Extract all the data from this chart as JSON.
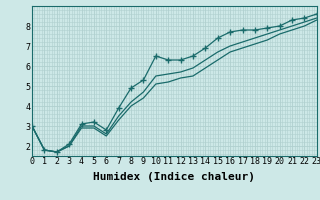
{
  "xlabel": "Humidex (Indice chaleur)",
  "background_color": "#cde8e7",
  "grid_color": "#b0d0cf",
  "line_color": "#1a6b6b",
  "x_values": [
    0,
    1,
    2,
    3,
    4,
    5,
    6,
    7,
    8,
    9,
    10,
    11,
    12,
    13,
    14,
    15,
    16,
    17,
    18,
    19,
    20,
    21,
    22,
    23
  ],
  "line1": [
    3.0,
    1.8,
    1.7,
    2.1,
    3.1,
    3.2,
    2.8,
    3.9,
    4.9,
    5.3,
    6.5,
    6.3,
    6.3,
    6.5,
    6.9,
    7.4,
    7.7,
    7.8,
    7.8,
    7.9,
    8.0,
    8.3,
    8.4,
    8.6
  ],
  "line2": [
    3.0,
    1.8,
    1.7,
    2.0,
    3.0,
    3.0,
    2.6,
    3.5,
    4.2,
    4.7,
    5.5,
    5.6,
    5.7,
    5.9,
    6.3,
    6.7,
    7.0,
    7.2,
    7.4,
    7.6,
    7.8,
    8.0,
    8.2,
    8.4
  ],
  "line3": [
    3.0,
    1.8,
    1.7,
    2.0,
    2.9,
    2.9,
    2.5,
    3.3,
    4.0,
    4.4,
    5.1,
    5.2,
    5.4,
    5.5,
    5.9,
    6.3,
    6.7,
    6.9,
    7.1,
    7.3,
    7.6,
    7.8,
    8.0,
    8.3
  ],
  "ylim": [
    1.5,
    9.0
  ],
  "xlim": [
    0,
    23
  ],
  "yticks": [
    2,
    3,
    4,
    5,
    6,
    7,
    8
  ],
  "xticks": [
    0,
    1,
    2,
    3,
    4,
    5,
    6,
    7,
    8,
    9,
    10,
    11,
    12,
    13,
    14,
    15,
    16,
    17,
    18,
    19,
    20,
    21,
    22,
    23
  ],
  "xtick_labels": [
    "0",
    "1",
    "2",
    "3",
    "4",
    "5",
    "6",
    "7",
    "8",
    "9",
    "10",
    "11",
    "12",
    "13",
    "14",
    "15",
    "16",
    "17",
    "18",
    "19",
    "20",
    "21",
    "22",
    "23"
  ],
  "tick_fontsize": 6,
  "xlabel_fontsize": 8,
  "markersize": 2.5,
  "linewidth": 0.9
}
